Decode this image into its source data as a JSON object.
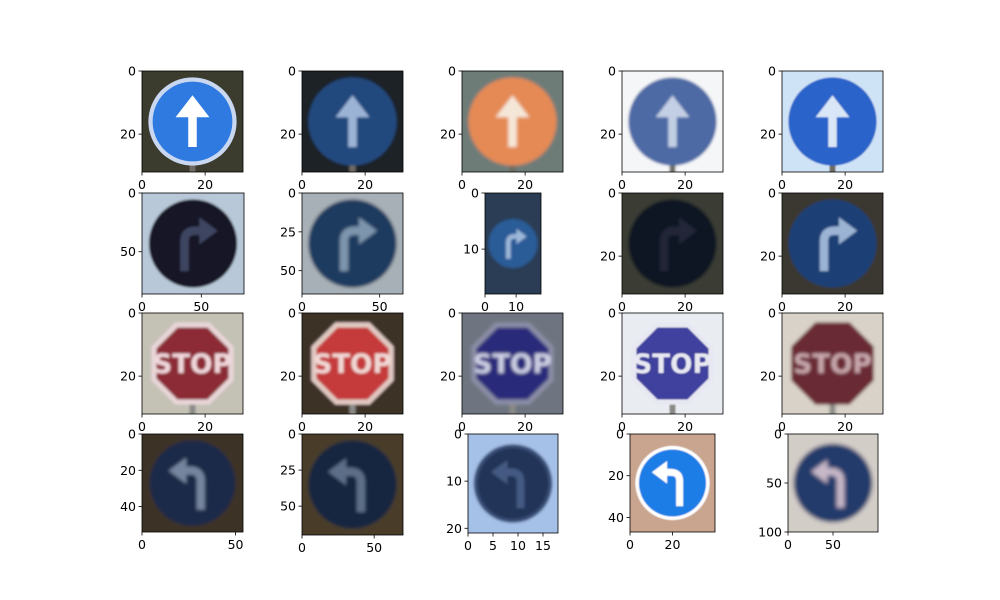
{
  "chart_data": {
    "type": "image_grid",
    "rows": 4,
    "cols": 5,
    "panels": [
      {
        "row": 0,
        "col": 0,
        "sign": "ahead",
        "bg": "#3a3a2e",
        "disc": "#2f7ae0",
        "rim": "#c9d8f0",
        "arrow": "#ffffff",
        "blur": 0.3,
        "xlim": [
          0,
          32
        ],
        "ylim": [
          0,
          32
        ],
        "xticks": [
          0,
          20
        ],
        "yticks": [
          0,
          20
        ]
      },
      {
        "row": 0,
        "col": 1,
        "sign": "ahead",
        "bg": "#1e2228",
        "disc": "#24497e",
        "rim": "#24497e",
        "arrow": "#9bb4d6",
        "blur": 1.2,
        "xlim": [
          0,
          32
        ],
        "ylim": [
          0,
          32
        ],
        "xticks": [
          0,
          20
        ],
        "yticks": [
          0,
          20
        ]
      },
      {
        "row": 0,
        "col": 2,
        "sign": "ahead",
        "bg": "#6e7c78",
        "disc": "#e58a55",
        "rim": "#e58a55",
        "arrow": "#f5e7d8",
        "blur": 1.6,
        "xlim": [
          0,
          32
        ],
        "ylim": [
          0,
          32
        ],
        "xticks": [
          0,
          20
        ],
        "yticks": [
          0,
          20
        ]
      },
      {
        "row": 0,
        "col": 3,
        "sign": "ahead",
        "bg": "#f4f6f8",
        "disc": "#4e6aa5",
        "rim": "#4e6aa5",
        "arrow": "#c3cfe4",
        "blur": 1.4,
        "xlim": [
          0,
          32
        ],
        "ylim": [
          0,
          32
        ],
        "xticks": [
          0,
          20
        ],
        "yticks": [
          0,
          20
        ]
      },
      {
        "row": 0,
        "col": 4,
        "sign": "ahead",
        "bg": "#cfe3f6",
        "disc": "#2a64c9",
        "rim": "#2a64c9",
        "arrow": "#d9e6f7",
        "blur": 0.9,
        "xlim": [
          0,
          32
        ],
        "ylim": [
          0,
          32
        ],
        "xticks": [
          0,
          20
        ],
        "yticks": [
          0,
          20
        ]
      },
      {
        "row": 1,
        "col": 0,
        "sign": "right",
        "bg": "#b8c8d8",
        "disc": "#141626",
        "rim": "#141626",
        "arrow": "#3c4560",
        "blur": 1.0,
        "xlim": [
          0,
          86
        ],
        "ylim": [
          0,
          86
        ],
        "xticks": [
          0,
          50
        ],
        "yticks": [
          0,
          50
        ]
      },
      {
        "row": 1,
        "col": 1,
        "sign": "right",
        "bg": "#a7b0b6",
        "disc": "#1e3a5e",
        "rim": "#1e3a5e",
        "arrow": "#7d95ad",
        "blur": 1.5,
        "xlim": [
          0,
          65
        ],
        "ylim": [
          0,
          65
        ],
        "xticks": [
          0,
          50
        ],
        "yticks": [
          0,
          25,
          50
        ]
      },
      {
        "row": 1,
        "col": 2,
        "sign": "right",
        "bg": "#2c3e55",
        "disc": "#2c5c97",
        "rim": "#2c5c97",
        "arrow": "#9cb7d8",
        "blur": 1.4,
        "xlim": [
          0,
          18
        ],
        "ylim": [
          0,
          18
        ],
        "xticks": [
          0,
          10
        ],
        "yticks": [
          0,
          10
        ]
      },
      {
        "row": 1,
        "col": 3,
        "sign": "right",
        "bg": "#3a3e34",
        "disc": "#0e1320",
        "rim": "#0e1320",
        "arrow": "#222838",
        "blur": 1.6,
        "xlim": [
          0,
          32
        ],
        "ylim": [
          0,
          32
        ],
        "xticks": [
          0,
          20
        ],
        "yticks": [
          0,
          20
        ]
      },
      {
        "row": 1,
        "col": 4,
        "sign": "right",
        "bg": "#3a3830",
        "disc": "#1f3f75",
        "rim": "#1f3f75",
        "arrow": "#9bb4d4",
        "blur": 1.0,
        "xlim": [
          0,
          32
        ],
        "ylim": [
          0,
          32
        ],
        "xticks": [
          0,
          20
        ],
        "yticks": [
          0,
          20
        ]
      },
      {
        "row": 2,
        "col": 0,
        "sign": "stop",
        "bg": "#c4c1b5",
        "disc": "#8c2a36",
        "rim": "#e8d6d8",
        "arrow": "#f1d8dc",
        "blur": 1.3,
        "xlim": [
          0,
          32
        ],
        "ylim": [
          0,
          32
        ],
        "xticks": [
          0,
          20
        ],
        "yticks": [
          0,
          20
        ]
      },
      {
        "row": 2,
        "col": 1,
        "sign": "stop",
        "bg": "#3c3028",
        "disc": "#c53a3a",
        "rim": "#e1c9c2",
        "arrow": "#f2d9d6",
        "blur": 1.3,
        "xlim": [
          0,
          32
        ],
        "ylim": [
          0,
          32
        ],
        "xticks": [
          0,
          20
        ],
        "yticks": [
          0,
          20
        ]
      },
      {
        "row": 2,
        "col": 2,
        "sign": "stop",
        "bg": "#6e7480",
        "disc": "#2c2c7a",
        "rim": "#8b8ea6",
        "arrow": "#cfd1e6",
        "blur": 1.5,
        "xlim": [
          0,
          32
        ],
        "ylim": [
          0,
          32
        ],
        "xticks": [
          0,
          20
        ],
        "yticks": [
          0,
          20
        ]
      },
      {
        "row": 2,
        "col": 3,
        "sign": "stop",
        "bg": "#e9edf2",
        "disc": "#3f3f9e",
        "rim": "#e8e8f2",
        "arrow": "#e8e8f2",
        "blur": 0.9,
        "xlim": [
          0,
          32
        ],
        "ylim": [
          0,
          32
        ],
        "xticks": [
          0,
          20
        ],
        "yticks": [
          0,
          20
        ]
      },
      {
        "row": 2,
        "col": 4,
        "sign": "stop",
        "bg": "#d9d2c8",
        "disc": "#6a2a34",
        "rim": "#6a2a34",
        "arrow": "#c9a9ae",
        "blur": 1.7,
        "xlim": [
          0,
          32
        ],
        "ylim": [
          0,
          32
        ],
        "xticks": [
          0,
          20
        ],
        "yticks": [
          0,
          20
        ]
      },
      {
        "row": 3,
        "col": 0,
        "sign": "left",
        "bg": "#3d3326",
        "disc": "#1b2a48",
        "rim": "#1b2a48",
        "arrow": "#74859f",
        "blur": 1.6,
        "xlim": [
          0,
          54
        ],
        "ylim": [
          0,
          54
        ],
        "xticks": [
          0,
          50
        ],
        "yticks": [
          0,
          20,
          40
        ]
      },
      {
        "row": 3,
        "col": 1,
        "sign": "left",
        "bg": "#4a3c2c",
        "disc": "#162541",
        "rim": "#162541",
        "arrow": "#5d6e88",
        "blur": 1.6,
        "xlim": [
          0,
          70
        ],
        "ylim": [
          0,
          70
        ],
        "xticks": [
          0,
          50
        ],
        "yticks": [
          0,
          25,
          50
        ]
      },
      {
        "row": 3,
        "col": 2,
        "sign": "left",
        "bg": "#a5c1e8",
        "disc": "#213458",
        "rim": "#3a4f78",
        "arrow": "#455a82",
        "blur": 1.2,
        "xlim": [
          0,
          18
        ],
        "ylim": [
          0,
          21
        ],
        "xticks": [
          0,
          5,
          10,
          15
        ],
        "yticks": [
          0,
          10,
          20
        ]
      },
      {
        "row": 3,
        "col": 3,
        "sign": "left",
        "bg": "#c9a48e",
        "disc": "#1f7de6",
        "rim": "#ffffff",
        "arrow": "#ffffff",
        "blur": 0.4,
        "xlim": [
          0,
          40
        ],
        "ylim": [
          0,
          47
        ],
        "xticks": [
          0,
          20
        ],
        "yticks": [
          0,
          20,
          40
        ]
      },
      {
        "row": 3,
        "col": 4,
        "sign": "left",
        "bg": "#d3cdc8",
        "disc": "#243a6a",
        "rim": "#243a6a",
        "arrow": "#c7b8c8",
        "blur": 2.0,
        "xlim": [
          0,
          100
        ],
        "ylim": [
          0,
          100
        ],
        "xticks": [
          0,
          50
        ],
        "yticks": [
          0,
          50,
          100
        ]
      }
    ]
  }
}
